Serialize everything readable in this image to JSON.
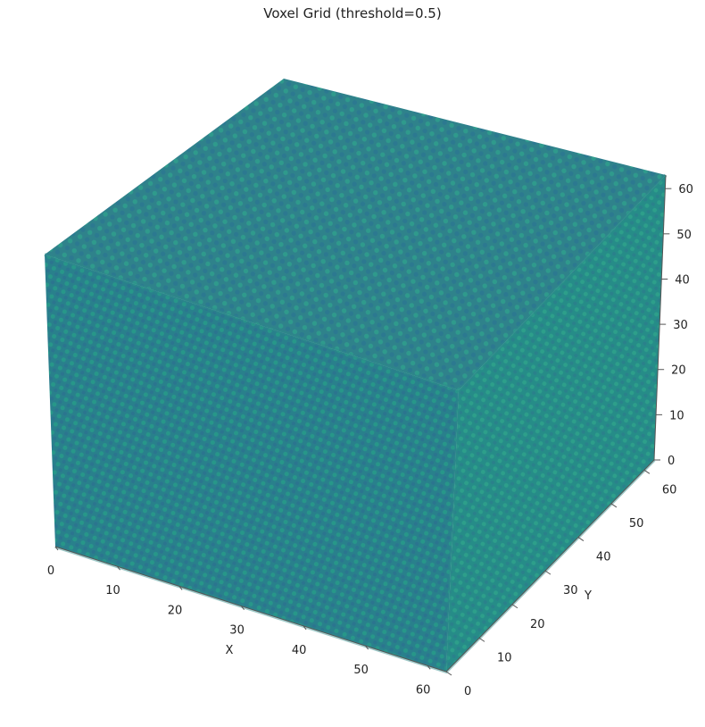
{
  "chart_data": {
    "type": "scatter",
    "title": "Voxel Grid (threshold=0.5)",
    "xlabel": "X",
    "ylabel": "Y",
    "zlabel": "",
    "xlim": [
      0,
      63
    ],
    "ylim": [
      0,
      63
    ],
    "zlim": [
      0,
      63
    ],
    "xticks": [
      "0",
      "10",
      "20",
      "30",
      "40",
      "50",
      "60"
    ],
    "yticks": [
      "0",
      "10",
      "20",
      "30",
      "40",
      "50",
      "60"
    ],
    "zticks": [
      "0",
      "10",
      "20",
      "30",
      "40",
      "50",
      "60"
    ],
    "grid": false,
    "colormap": "viridis",
    "marker_colors": [
      "#1f7f8a",
      "#238a88",
      "#2a9d8f",
      "#2f6e8f",
      "#26a17f",
      "#1e9383"
    ]
  }
}
